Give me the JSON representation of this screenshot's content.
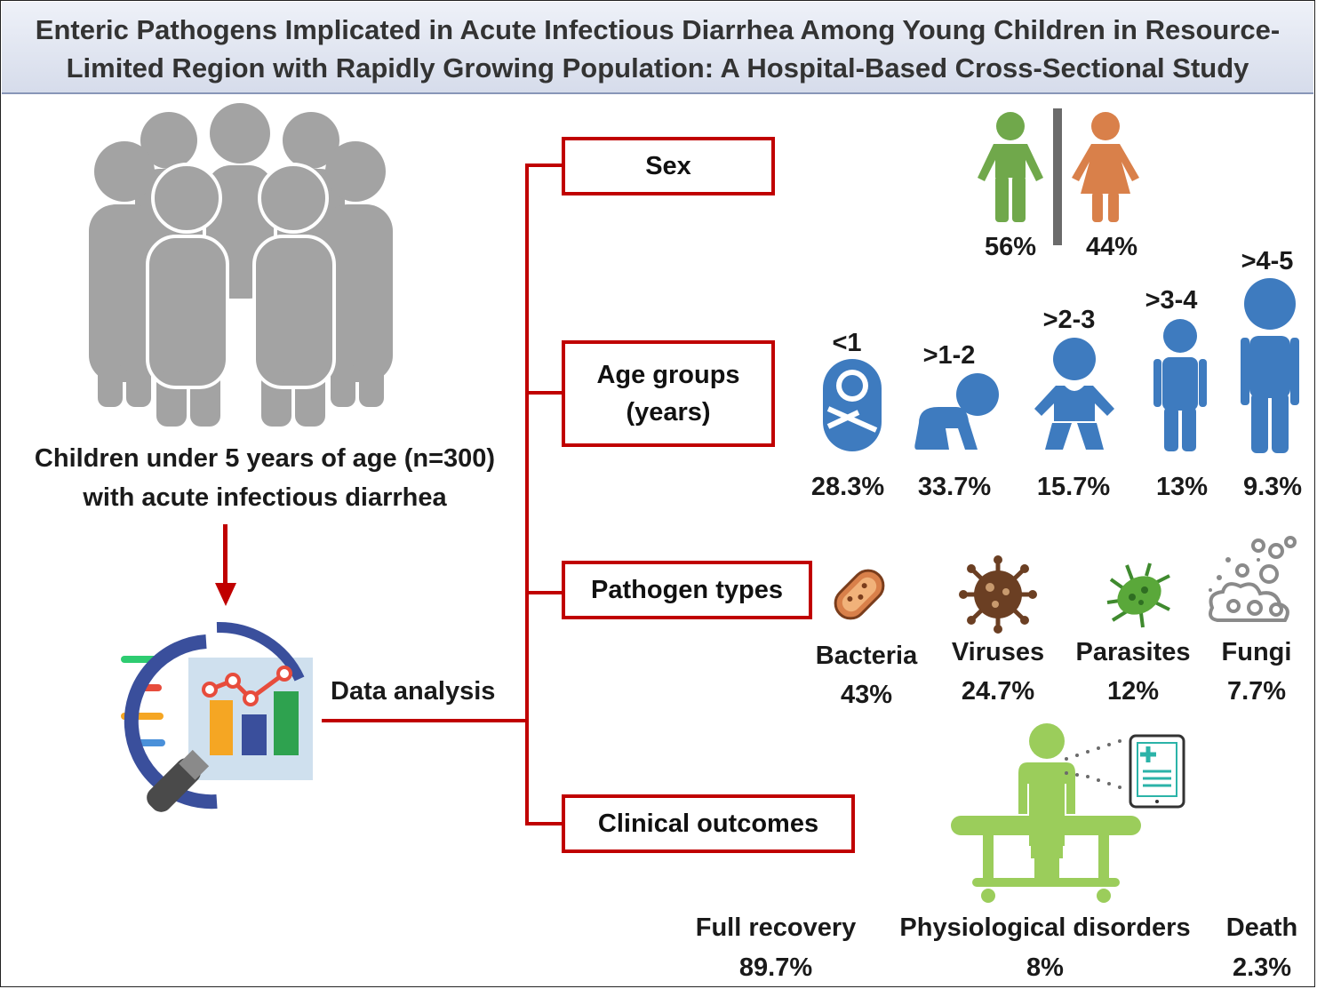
{
  "title": {
    "line1": "Enteric Pathogens Implicated in Acute Infectious Diarrhea Among Young Children in Resource-",
    "line2": "Limited Region with Rapidly Growing Population: A Hospital-Based Cross-Sectional Study"
  },
  "population": {
    "line1": "Children under 5 years of age (n=300)",
    "line2": "with acute infectious diarrhea"
  },
  "analysis_label": "Data analysis",
  "categories": {
    "sex": "Sex",
    "age_line1": "Age groups",
    "age_line2": "(years)",
    "pathogens": "Pathogen types",
    "outcomes": "Clinical outcomes"
  },
  "sex": {
    "male_pct": "56%",
    "female_pct": "44%",
    "colors": {
      "male": "#70a84b",
      "female": "#d9804a"
    }
  },
  "age_groups": [
    {
      "label": "<1",
      "pct": "28.3%"
    },
    {
      "label": ">1-2",
      "pct": "33.7%"
    },
    {
      "label": ">2-3",
      "pct": "15.7%"
    },
    {
      "label": ">3-4",
      "pct": "13%"
    },
    {
      "label": ">4-5",
      "pct": "9.3%"
    }
  ],
  "pathogens": [
    {
      "name": "Bacteria",
      "pct": "43%",
      "icon": "bacteria-icon"
    },
    {
      "name": "Viruses",
      "pct": "24.7%",
      "icon": "virus-icon"
    },
    {
      "name": "Parasites",
      "pct": "12%",
      "icon": "parasite-icon"
    },
    {
      "name": "Fungi",
      "pct": "7.7%",
      "icon": "fungi-icon"
    }
  ],
  "outcomes": [
    {
      "name": "Full recovery",
      "pct": "89.7%"
    },
    {
      "name": "Physiological disorders",
      "pct": "8%"
    },
    {
      "name": "Death",
      "pct": "2.3%"
    }
  ],
  "colors": {
    "accent": "#c00000",
    "child_blue": "#3e7bbf",
    "crowd_gray": "#a3a3a3",
    "patient_green": "#9bcd5b"
  }
}
